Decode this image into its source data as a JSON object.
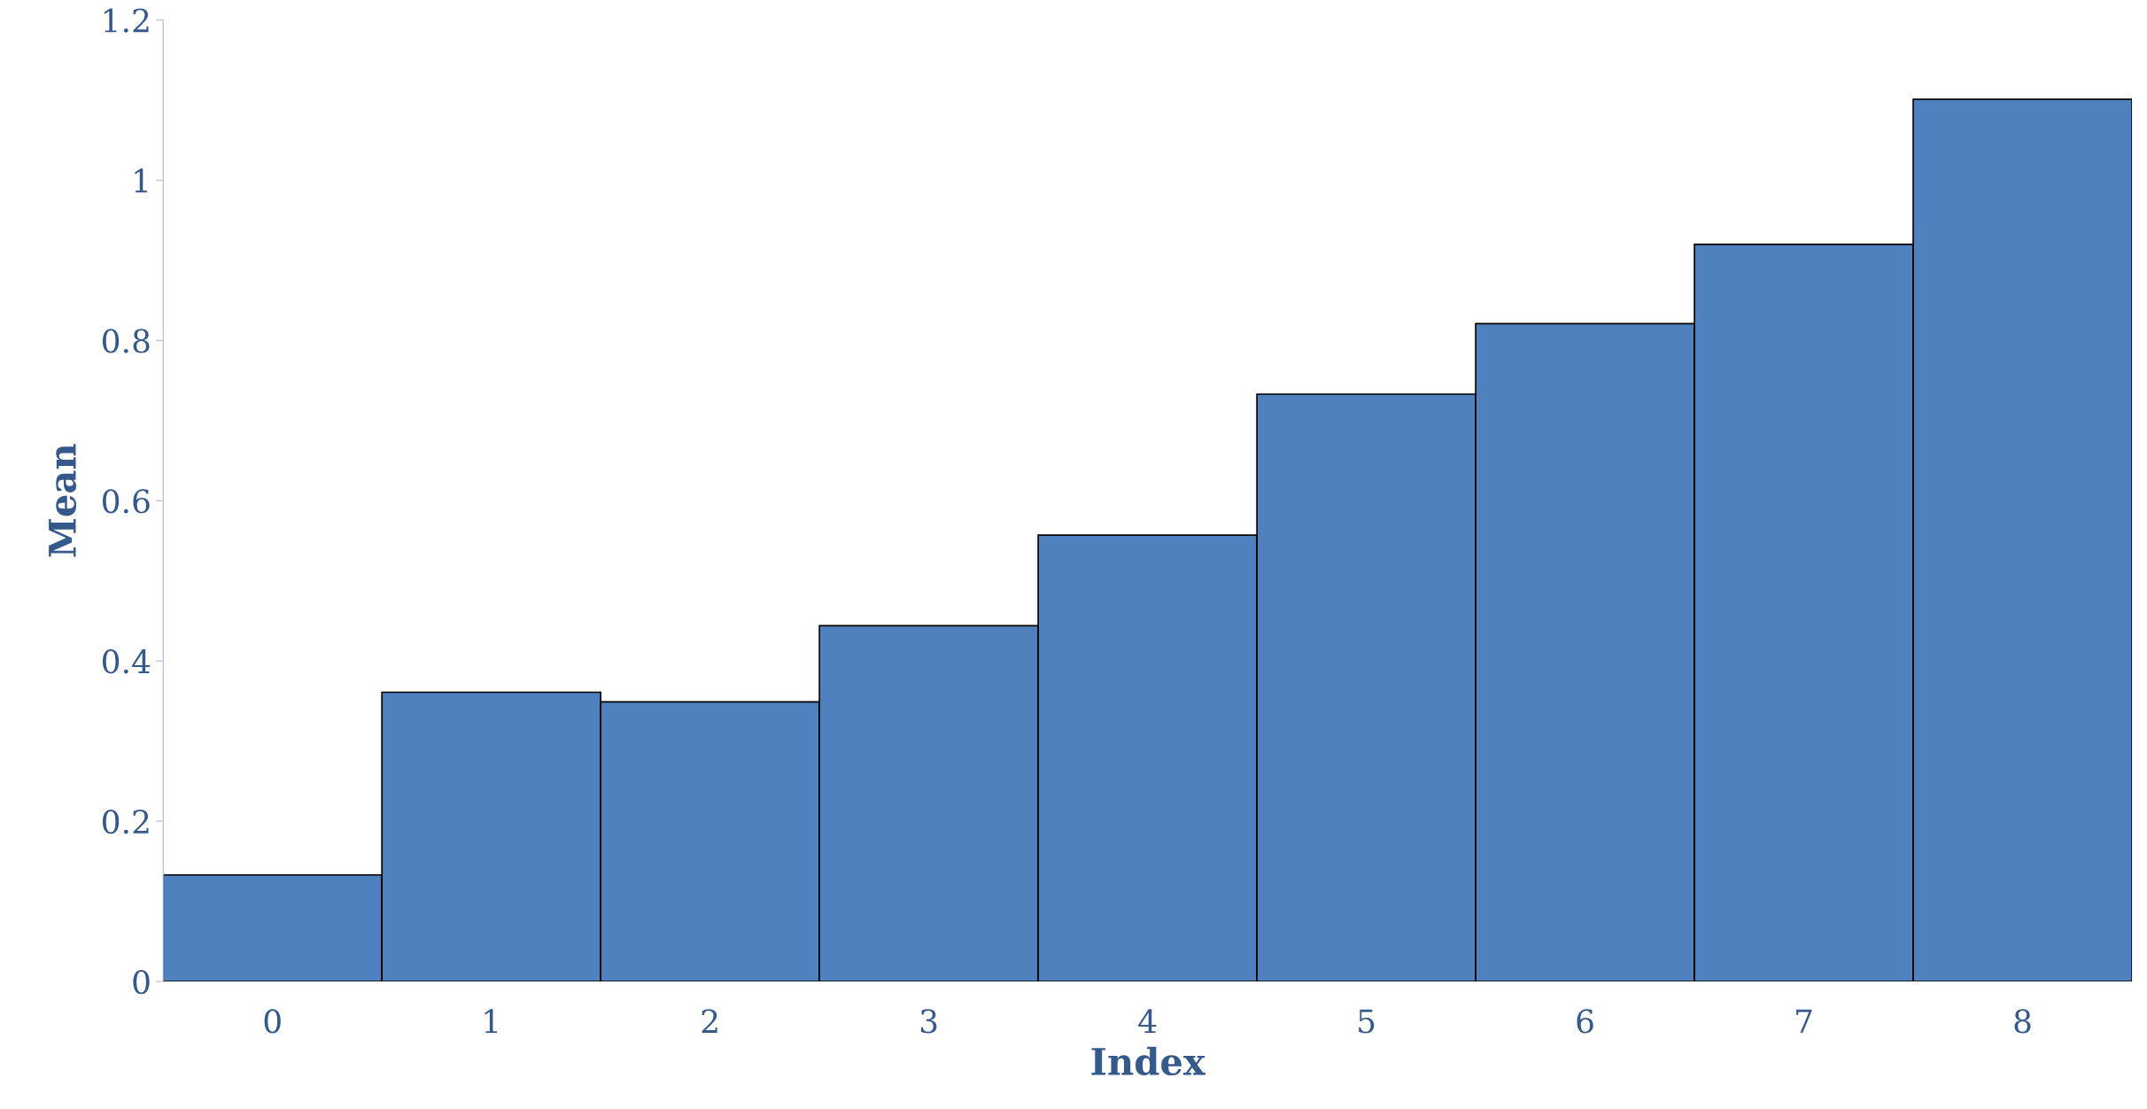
{
  "chart_data": {
    "type": "bar",
    "xlabel": "Index",
    "ylabel": "Mean",
    "categories": [
      "0",
      "1",
      "2",
      "3",
      "4",
      "5",
      "6",
      "7",
      "8"
    ],
    "values": [
      0.133,
      0.361,
      0.349,
      0.444,
      0.557,
      0.733,
      0.821,
      0.92,
      1.101
    ],
    "color": "#4e81bd",
    "ylim": [
      0,
      1.2
    ],
    "yticks": [
      0,
      0.2,
      0.4,
      0.6,
      0.8,
      1,
      1.2
    ],
    "grid": false,
    "legend": false
  }
}
